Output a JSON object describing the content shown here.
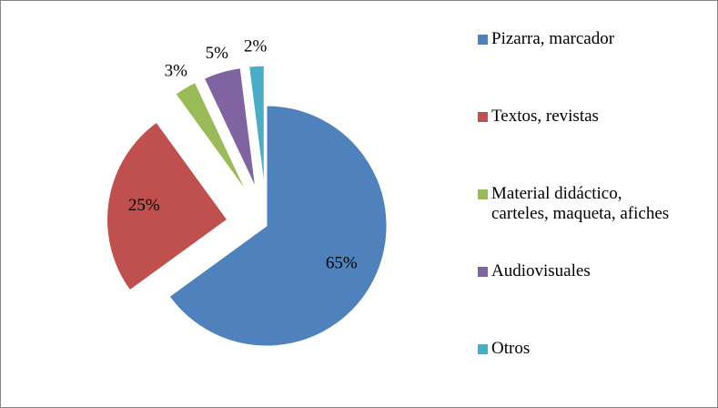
{
  "chart_data": {
    "type": "pie",
    "categories": [
      "Pizarra, marcador",
      "Textos, revistas",
      "Material didáctico, carteles, maqueta, afiches",
      "Audiovisuales",
      "Otros"
    ],
    "values": [
      65,
      25,
      3,
      5,
      2
    ],
    "value_labels": [
      "65%",
      "25%",
      "3%",
      "5%",
      "2%"
    ],
    "colors": [
      "#4f81bd",
      "#c0504d",
      "#9bbb59",
      "#8064a2",
      "#4bacc6"
    ],
    "legend": "right"
  }
}
